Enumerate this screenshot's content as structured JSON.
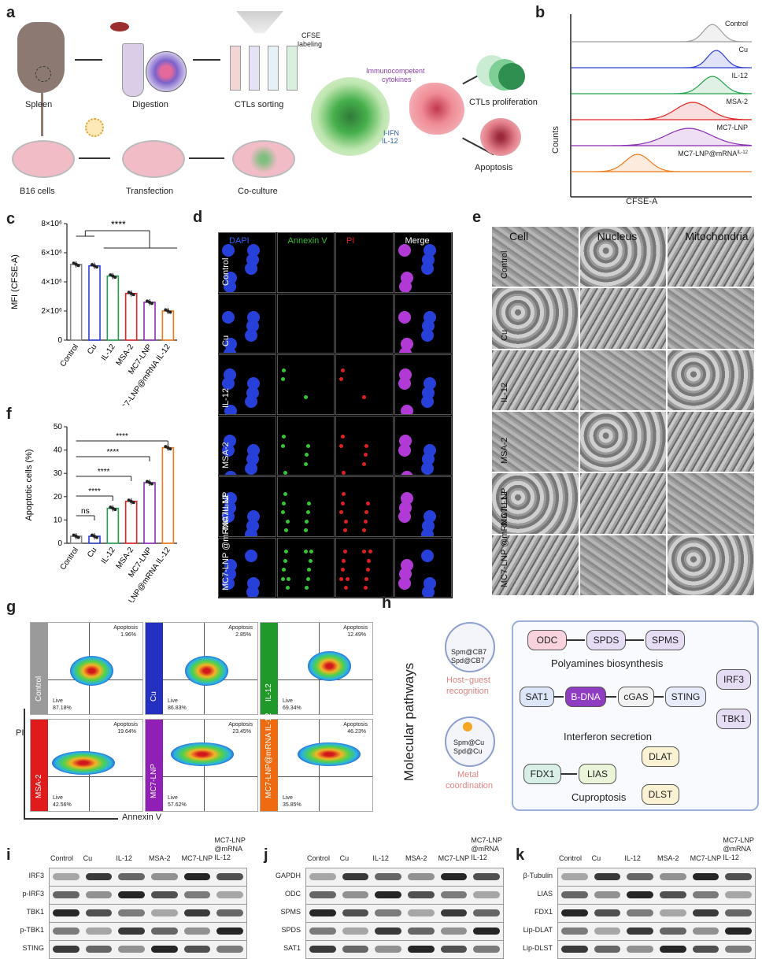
{
  "panels": {
    "a": "a",
    "b": "b",
    "c": "c",
    "d": "d",
    "e": "e",
    "f": "f",
    "g": "g",
    "h": "h",
    "i": "i",
    "j": "j",
    "k": "k"
  },
  "panel_a": {
    "spleen": "Spleen",
    "digestion": "Digestion",
    "ctls_sorting": "CTLs sorting",
    "cfse": "CFSE",
    "labeling": "labeling",
    "b16": "B16 cells",
    "transfection": "Transfection",
    "coculture": "Co-culture",
    "immunocompetent": "Immunocompetent",
    "cytokines": "cytokines",
    "ifn": "I-IFN",
    "il12": "IL-12",
    "ctls_prolif": "CTLs proliferation",
    "apoptosis": "Apoptosis"
  },
  "panel_b": {
    "xlabel": "CFSE-A",
    "ylabel": "Counts",
    "series": [
      {
        "name": "Control",
        "color": "#9e9e9e"
      },
      {
        "name": "Cu",
        "color": "#2d3fd3"
      },
      {
        "name": "IL-12",
        "color": "#22a34a"
      },
      {
        "name": "MSA-2",
        "color": "#e02424"
      },
      {
        "name": "MC7-LNP",
        "color": "#8a2bb5"
      },
      {
        "name": "MC7-LNP@mRNA",
        "sup": "IL-12",
        "color": "#f07a1a"
      }
    ]
  },
  "chart_data": [
    {
      "type": "bar",
      "panel": "c",
      "ylabel": "MFI (CFSE-A)",
      "categories": [
        "Control",
        "Cu",
        "IL-12",
        "MSA-2",
        "MC7-LNP",
        "MC7-LNP@mRNA IL-12"
      ],
      "values": [
        5.2,
        5.1,
        4.4,
        3.2,
        2.6,
        2.0
      ],
      "unit": "×10^6",
      "ylim": [
        0,
        8
      ],
      "yticks": [
        "0",
        "2×10⁶",
        "4×10⁶",
        "6×10⁶",
        "8×10⁶"
      ],
      "significance": "****",
      "colors": [
        "#888888",
        "#2d3fd3",
        "#22a34a",
        "#e02424",
        "#8a2bb5",
        "#f07a1a"
      ]
    },
    {
      "type": "bar",
      "panel": "f",
      "ylabel": "Apoptotic cells (%)",
      "categories": [
        "Control",
        "Cu",
        "IL-12",
        "MSA-2",
        "MC7-LNP",
        "MC7-LNP@mRNA IL-12"
      ],
      "values": [
        3,
        3,
        15,
        18,
        26,
        41
      ],
      "ylim": [
        0,
        50
      ],
      "yticks": [
        "0",
        "10",
        "20",
        "30",
        "40",
        "50"
      ],
      "significance": [
        "ns",
        "****",
        "****",
        "****",
        "****"
      ],
      "colors": [
        "#888888",
        "#2d3fd3",
        "#22a34a",
        "#e02424",
        "#8a2bb5",
        "#f07a1a"
      ]
    }
  ],
  "panel_d": {
    "columns": [
      "DAPI",
      "Annexin V",
      "PI",
      "Merge"
    ],
    "rows": [
      "Control",
      "Cu",
      "IL-12",
      "MSA-2",
      "MC7-LNP",
      "MC7-LNP @mRNA IL-12"
    ]
  },
  "panel_e": {
    "columns": [
      "Cell",
      "Nucleus",
      "Mitochondria"
    ],
    "rows": [
      "Control",
      "Cu",
      "IL-12",
      "MSA-2",
      "MC7-LNP",
      "MC7-LNP @mRNA IL-12"
    ]
  },
  "panel_g": {
    "xlabel": "Annexin V",
    "ylabel": "PI",
    "plots": [
      {
        "name": "Control",
        "apoptosis": "1.96%",
        "live": "87.18%",
        "color": "#9a9a9a"
      },
      {
        "name": "Cu",
        "apoptosis": "2.85%",
        "live": "86.83%",
        "color": "#2430c0"
      },
      {
        "name": "IL-12",
        "apoptosis": "12.49%",
        "live": "69.34%",
        "color": "#1f9a2a"
      },
      {
        "name": "MSA-2",
        "apoptosis": "19.64%",
        "live": "42.56%",
        "color": "#e01b1b"
      },
      {
        "name": "MC7-LNP",
        "apoptosis": "23.45%",
        "live": "57.62%",
        "color": "#8f1fb5"
      },
      {
        "name": "MC7-LNP@mRNA IL-12",
        "apoptosis": "46.23%",
        "live": "35.85%",
        "color": "#f06a10"
      }
    ],
    "apoptosis_label": "Apoptosis",
    "live_label": "Live"
  },
  "panel_h": {
    "title": "Molecular pathways",
    "spm_cb7": "Spm@CB7",
    "spd_cb7": "Spd@CB7",
    "hostguest1": "Host−guest",
    "hostguest2": "recognition",
    "spm_cu": "Spm@Cu",
    "spd_cu": "Spd@Cu",
    "metal1": "Metal",
    "metal2": "coordination",
    "odc": "ODC",
    "spds": "SPDS",
    "spms": "SPMS",
    "polyamines": "Polyamines biosynthesis",
    "sat1": "SAT1",
    "bdna": "B-DNA",
    "cgas": "cGAS",
    "sting": "STING",
    "irf3": "IRF3",
    "tbk1": "TBK1",
    "interferon": "Interferon secretion",
    "fdx1": "FDX1",
    "lias": "LIAS",
    "dlat": "DLAT",
    "dlst": "DLST",
    "cuproptosis": "Cuproptosis"
  },
  "panel_i": {
    "columns": [
      "Control",
      "Cu",
      "IL-12",
      "MSA-2",
      "MC7-LNP",
      "MC7-LNP @mRNA IL-12"
    ],
    "rows": [
      "IRF3",
      "p-IRF3",
      "TBK1",
      "p-TBK1",
      "STING"
    ]
  },
  "panel_j": {
    "columns": [
      "Control",
      "Cu",
      "IL-12",
      "MSA-2",
      "MC7-LNP",
      "MC7-LNP @mRNA IL-12"
    ],
    "rows": [
      "GAPDH",
      "ODC",
      "SPMS",
      "SPDS",
      "SAT1"
    ]
  },
  "panel_k": {
    "columns": [
      "Control",
      "Cu",
      "IL-12",
      "MSA-2",
      "MC7-LNP",
      "MC7-LNP @mRNA IL-12"
    ],
    "rows": [
      "β-Tubulin",
      "LIAS",
      "FDX1",
      "Lip-DLAT",
      "Lip-DLST"
    ]
  }
}
